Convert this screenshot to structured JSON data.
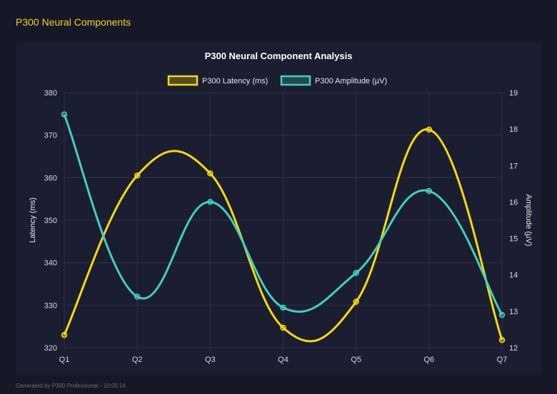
{
  "page": {
    "title": "P300 Neural Components",
    "footer": "Generated by P300 Professional - 10:05:14"
  },
  "chart_data": {
    "type": "line",
    "title": "P300 Neural Component Analysis",
    "categories": [
      "Q1",
      "Q2",
      "Q3",
      "Q4",
      "Q5",
      "Q6",
      "Q7"
    ],
    "series": [
      {
        "name": "P300 Latency (ms)",
        "axis": "left",
        "color": "#f5d90a",
        "values": [
          323,
          360.5,
          361,
          324.7,
          330.8,
          371.3,
          321.8
        ]
      },
      {
        "name": "P300 Amplitude (µV)",
        "axis": "right",
        "color": "#3ecfc0",
        "values": [
          18.4,
          13.4,
          16.0,
          13.1,
          14.05,
          16.3,
          12.9
        ]
      }
    ],
    "y_left": {
      "label": "Latency (ms)",
      "range": [
        320,
        380
      ],
      "ticks": [
        320,
        330,
        340,
        350,
        360,
        370,
        380
      ]
    },
    "y_right": {
      "label": "Amplitude (µV)",
      "range": [
        12,
        19
      ],
      "ticks": [
        12,
        13,
        14,
        15,
        16,
        17,
        18,
        19
      ]
    },
    "grid": true,
    "legend": "top",
    "smooth": true
  }
}
